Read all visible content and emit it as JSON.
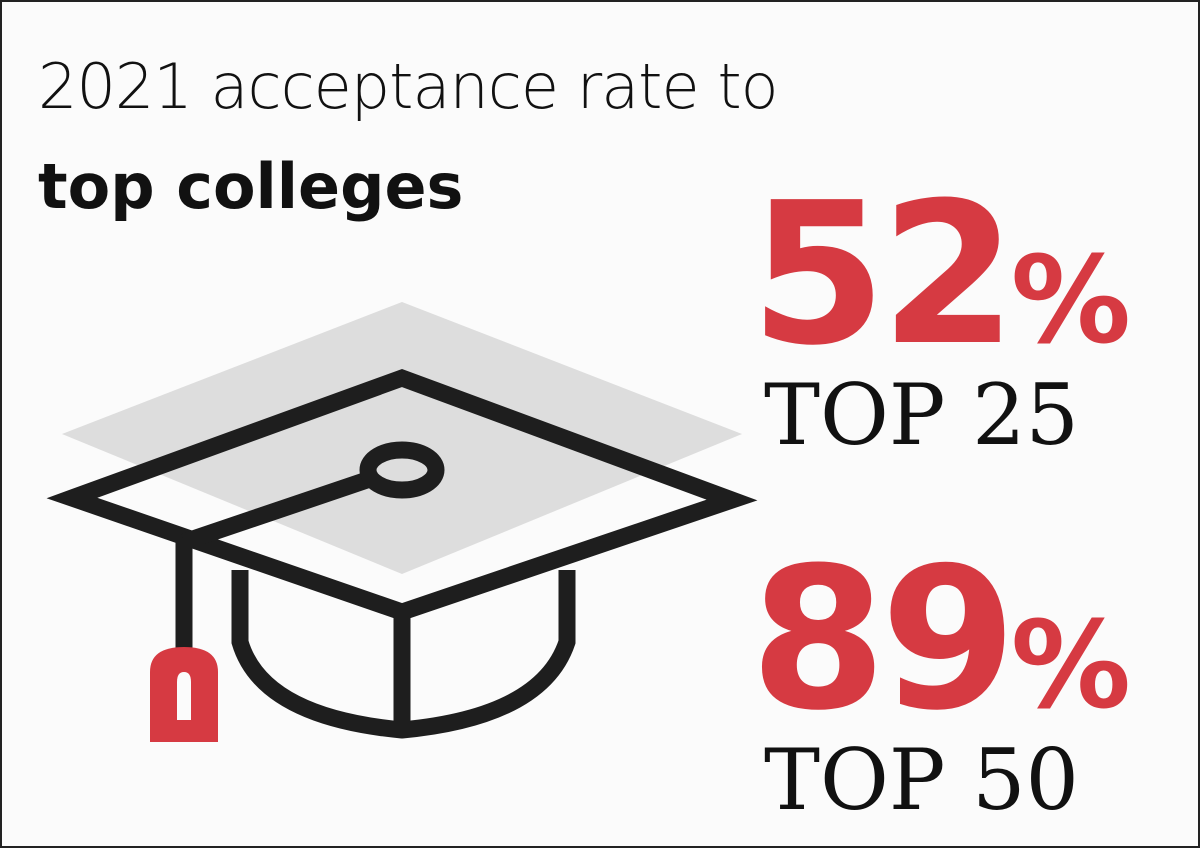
{
  "title": {
    "line1": "2021 acceptance rate to",
    "line2": "top colleges"
  },
  "stats": [
    {
      "figure": "52",
      "symbol": "%",
      "label": "TOP 25"
    },
    {
      "figure": "89",
      "symbol": "%",
      "label": "TOP 50"
    }
  ]
}
